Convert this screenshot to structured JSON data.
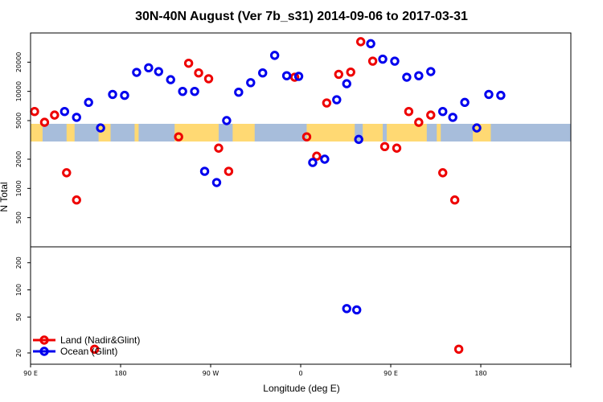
{
  "chart_data": {
    "type": "scatter",
    "title": "30N-40N August (Ver 7b_s31)   2014-09-06 to 2017-03-31",
    "xlabel": "Longitude (deg E)",
    "ylabel": "N Total",
    "xlim": [
      -90,
      180
    ],
    "x_ticks": [
      {
        "value": -90,
        "label": "90 E"
      },
      {
        "value": -45,
        "label": "180"
      },
      {
        "value": 0,
        "label": "90 W"
      },
      {
        "value": 45,
        "label": "0"
      },
      {
        "value": 90,
        "label": "90 E"
      },
      {
        "value": 135,
        "label": "180"
      }
    ],
    "upper_panel": {
      "scale": "log",
      "ylim": [
        250,
        40000
      ],
      "y_ticks": [
        500,
        1000,
        2000,
        5000,
        10000,
        20000
      ]
    },
    "lower_panel": {
      "scale": "log",
      "ylim": [
        15,
        300
      ],
      "y_ticks": [
        20,
        50,
        100,
        200
      ]
    },
    "series": [
      {
        "name": "Land (Nadir&Glint)",
        "color": "#ee0000",
        "upper": [
          [
            -88,
            6200
          ],
          [
            -83,
            4800
          ],
          [
            -78,
            5700
          ],
          [
            -72,
            1450
          ],
          [
            -67,
            760
          ],
          [
            -16,
            3400
          ],
          [
            -11,
            19500
          ],
          [
            -6,
            15500
          ],
          [
            -1,
            13500
          ],
          [
            4,
            2600
          ],
          [
            9,
            1500
          ],
          [
            42,
            14000
          ],
          [
            48,
            3400
          ],
          [
            53,
            2150
          ],
          [
            58,
            7600
          ],
          [
            64,
            15000
          ],
          [
            70,
            15800
          ],
          [
            75,
            32500
          ],
          [
            81,
            20500
          ],
          [
            87,
            2700
          ],
          [
            93,
            2600
          ],
          [
            99,
            6200
          ],
          [
            104,
            4800
          ],
          [
            110,
            5700
          ],
          [
            116,
            1450
          ],
          [
            122,
            760
          ]
        ],
        "lower": [
          [
            -58,
            22
          ],
          [
            124,
            22
          ]
        ]
      },
      {
        "name": "Ocean (Glint)",
        "color": "#0000ee",
        "upper": [
          [
            -73,
            6200
          ],
          [
            -67,
            5400
          ],
          [
            -61,
            7700
          ],
          [
            -55,
            4200
          ],
          [
            -49,
            9300
          ],
          [
            -43,
            9100
          ],
          [
            -37,
            15700
          ],
          [
            -31,
            17500
          ],
          [
            -26,
            16000
          ],
          [
            -20,
            13200
          ],
          [
            -14,
            10000
          ],
          [
            -8,
            10000
          ],
          [
            -3,
            1500
          ],
          [
            3,
            1150
          ],
          [
            8,
            5000
          ],
          [
            14,
            9800
          ],
          [
            20,
            12300
          ],
          [
            26,
            15500
          ],
          [
            32,
            23500
          ],
          [
            38,
            14500
          ],
          [
            44,
            14300
          ],
          [
            51,
            1850
          ],
          [
            57,
            2000
          ],
          [
            63,
            8200
          ],
          [
            68,
            12000
          ],
          [
            74,
            3200
          ],
          [
            80,
            31000
          ],
          [
            86,
            21500
          ],
          [
            92,
            20500
          ],
          [
            98,
            14000
          ],
          [
            104,
            14500
          ],
          [
            110,
            16000
          ],
          [
            116,
            6200
          ],
          [
            121,
            5400
          ],
          [
            127,
            7700
          ],
          [
            133,
            4200
          ],
          [
            139,
            9300
          ],
          [
            145,
            9100
          ]
        ],
        "lower": [
          [
            68,
            62
          ],
          [
            73,
            60
          ]
        ]
      }
    ],
    "legend": {
      "position": "bottom-left",
      "entries": [
        "Land (Nadir&Glint)",
        "Ocean (Glint)"
      ]
    },
    "map_strip": {
      "ocean_color": "#a7bddb",
      "land_color": "#ffd973"
    }
  }
}
